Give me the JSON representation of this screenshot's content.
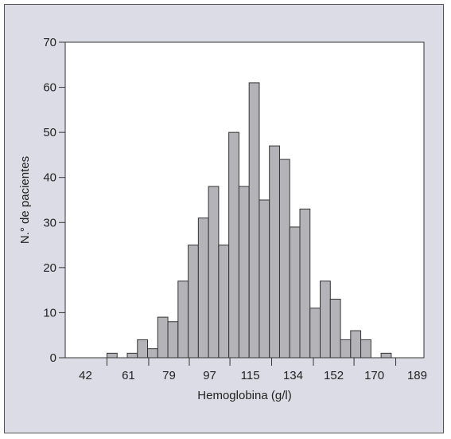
{
  "chart_data": {
    "type": "bar",
    "title": "",
    "xlabel": "Hemoglobina (g/l)",
    "ylabel": "N.° de pacientes",
    "ylim": [
      0,
      70
    ],
    "yticks": [
      0,
      10,
      20,
      30,
      40,
      50,
      60,
      70
    ],
    "xlim": [
      33,
      192
    ],
    "xticks": [
      42,
      61,
      79,
      97,
      115,
      134,
      152,
      170,
      189
    ],
    "bin_width": 4.5,
    "bins": [
      {
        "start": 51.5,
        "value": 1
      },
      {
        "start": 60.5,
        "value": 1
      },
      {
        "start": 65.0,
        "value": 4
      },
      {
        "start": 69.5,
        "value": 2
      },
      {
        "start": 74.0,
        "value": 9
      },
      {
        "start": 78.5,
        "value": 8
      },
      {
        "start": 83.0,
        "value": 17
      },
      {
        "start": 87.5,
        "value": 25
      },
      {
        "start": 92.0,
        "value": 31
      },
      {
        "start": 96.5,
        "value": 38
      },
      {
        "start": 101.0,
        "value": 25
      },
      {
        "start": 105.5,
        "value": 50
      },
      {
        "start": 110.0,
        "value": 38
      },
      {
        "start": 114.5,
        "value": 61
      },
      {
        "start": 119.0,
        "value": 35
      },
      {
        "start": 123.5,
        "value": 47
      },
      {
        "start": 128.0,
        "value": 44
      },
      {
        "start": 132.5,
        "value": 29
      },
      {
        "start": 137.0,
        "value": 33
      },
      {
        "start": 141.5,
        "value": 11
      },
      {
        "start": 146.0,
        "value": 17
      },
      {
        "start": 150.5,
        "value": 13
      },
      {
        "start": 155.0,
        "value": 4
      },
      {
        "start": 159.5,
        "value": 6
      },
      {
        "start": 164.0,
        "value": 4
      },
      {
        "start": 173.0,
        "value": 1
      }
    ],
    "grid": false,
    "legend": "none",
    "colors": {
      "bar_fill": "#b4b4b8",
      "bar_stroke": "#333333",
      "plot_bg": "#ffffff",
      "frame_bg": "#dcdce6",
      "axis": "#333333"
    }
  }
}
